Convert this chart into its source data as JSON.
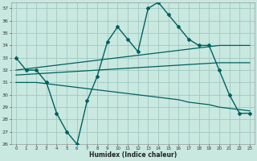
{
  "xlabel": "Humidex (Indice chaleur)",
  "background_color": "#c8e8e0",
  "grid_color": "#a0c8c0",
  "line_color": "#006060",
  "x_values": [
    0,
    1,
    2,
    3,
    4,
    5,
    6,
    7,
    8,
    9,
    10,
    11,
    12,
    13,
    14,
    15,
    16,
    17,
    18,
    19,
    20,
    21,
    22,
    23
  ],
  "humidex_values": [
    33,
    32,
    32,
    31,
    28.5,
    27,
    26,
    29.5,
    31.5,
    34.3,
    35.5,
    34.5,
    33.5,
    37,
    37.5,
    36.5,
    35.5,
    34.5,
    34,
    34,
    32,
    30,
    28.5,
    28.5
  ],
  "line_upper": [
    32.0,
    32.1,
    32.2,
    32.3,
    32.4,
    32.5,
    32.6,
    32.7,
    32.8,
    32.9,
    33.0,
    33.1,
    33.2,
    33.3,
    33.4,
    33.5,
    33.6,
    33.7,
    33.8,
    33.9,
    34.0,
    34.0,
    34.0,
    34.0
  ],
  "line_mid": [
    31.6,
    31.65,
    31.7,
    31.75,
    31.8,
    31.85,
    31.9,
    31.95,
    32.0,
    32.05,
    32.1,
    32.15,
    32.2,
    32.25,
    32.3,
    32.35,
    32.4,
    32.45,
    32.5,
    32.55,
    32.6,
    32.6,
    32.6,
    32.6
  ],
  "line_lower": [
    31.0,
    31.0,
    31.0,
    30.9,
    30.8,
    30.7,
    30.6,
    30.5,
    30.4,
    30.3,
    30.2,
    30.1,
    30.0,
    29.9,
    29.8,
    29.7,
    29.6,
    29.4,
    29.3,
    29.2,
    29.0,
    28.9,
    28.8,
    28.7
  ],
  "ylim": [
    26,
    37.5
  ],
  "yticks": [
    26,
    27,
    28,
    29,
    30,
    31,
    32,
    33,
    34,
    35,
    36,
    37
  ],
  "xlim": [
    -0.5,
    23.5
  ],
  "xticks": [
    0,
    1,
    2,
    3,
    4,
    5,
    6,
    7,
    8,
    9,
    10,
    11,
    12,
    13,
    14,
    15,
    16,
    17,
    18,
    19,
    20,
    21,
    22,
    23
  ]
}
